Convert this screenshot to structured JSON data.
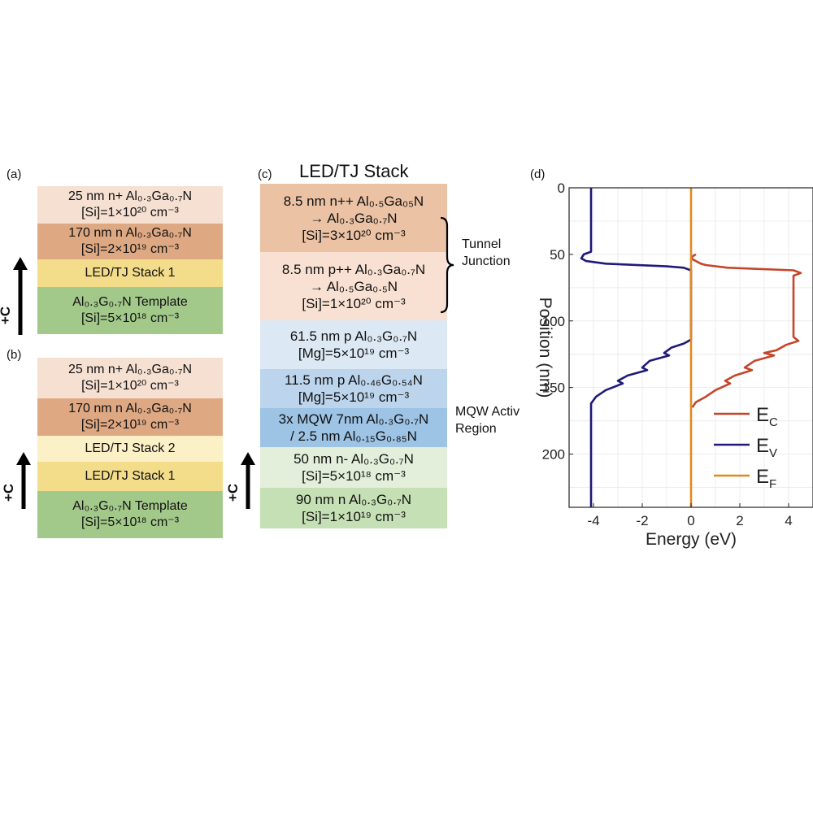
{
  "panel_a": {
    "label": "(a)",
    "layers": [
      {
        "line1": "25 nm n+ Al₀.₃Ga₀.₇N",
        "line2": "[Si]=1×10²⁰ cm⁻³",
        "color": "#f5e0d2"
      },
      {
        "line1": "170 nm n Al₀.₃Ga₀.₇N",
        "line2": "[Si]=2×10¹⁹ cm⁻³",
        "color": "#dea883"
      },
      {
        "line1": "LED/TJ Stack 1",
        "line2": "",
        "color": "#f3dc8a"
      },
      {
        "line1": "Al₀.₃G₀.₇N Template",
        "line2": "[Si]=5×10¹⁸ cm⁻³",
        "color": "#a3c98a"
      }
    ],
    "arrow_label": "+C"
  },
  "panel_b": {
    "label": "(b)",
    "layers": [
      {
        "line1": "25 nm n+ Al₀.₃Ga₀.₇N",
        "line2": "[Si]=1×10²⁰ cm⁻³",
        "color": "#f5e0d2"
      },
      {
        "line1": "170 nm n Al₀.₃Ga₀.₇N",
        "line2": "[Si]=2×10¹⁹ cm⁻³",
        "color": "#dea883"
      },
      {
        "line1": "LED/TJ Stack 2",
        "line2": "",
        "color": "#fbf0c6"
      },
      {
        "line1": "LED/TJ Stack 1",
        "line2": "",
        "color": "#f3dc8a"
      },
      {
        "line1": "Al₀.₃G₀.₇N Template",
        "line2": "[Si]=5×10¹⁸ cm⁻³",
        "color": "#a3c98a"
      }
    ],
    "arrow_label": "+C"
  },
  "panel_c": {
    "label": "(c)",
    "title": "LED/TJ Stack",
    "layers": [
      {
        "line1": "8.5 nm n++ Al₀.₅Ga₀₅N",
        "line2": "→ Al₀.₃Ga₀.₇N",
        "line3": "[Si]=3×10²⁰ cm⁻³",
        "color": "#ebc2a4"
      },
      {
        "line1": "8.5 nm p++ Al₀.₃Ga₀.₇N",
        "line2": "→ Al₀.₅Ga₀.₅N",
        "line3": "[Si]=1×10²⁰ cm⁻³",
        "color": "#f8e1d2"
      },
      {
        "line1": "61.5 nm p Al₀.₃G₀.₇N",
        "line2": "[Mg]=5×10¹⁹ cm⁻³",
        "line3": "",
        "color": "#dce9f4"
      },
      {
        "line1": "11.5 nm p Al₀.₄₆G₀.₅₄N",
        "line2": "[Mg]=5×10¹⁹ cm⁻³",
        "line3": "",
        "color": "#bcd5ec"
      },
      {
        "line1": "3x MQW 7nm Al₀.₃G₀.₇N",
        "line2": "/ 2.5 nm Al₀.₁₅G₀.₈₅N",
        "line3": "",
        "color": "#9dc3e5"
      },
      {
        "line1": "50 nm n- Al₀.₃G₀.₇N",
        "line2": "[Si]=5×10¹⁸ cm⁻³",
        "line3": "",
        "color": "#e3efdb"
      },
      {
        "line1": "90 nm n Al₀.₃G₀.₇N",
        "line2": "[Si]=1×10¹⁹ cm⁻³",
        "line3": "",
        "color": "#c6e0b5"
      }
    ],
    "tunnel_label_1": "Tunnel",
    "tunnel_label_2": "Junction",
    "mqw_label_1": "MQW Activ",
    "mqw_label_2": "Region",
    "arrow_label": "+C"
  },
  "panel_d": {
    "label": "(d)",
    "chart_data": {
      "type": "line",
      "xlabel": "Energy (eV)",
      "ylabel": "Position (nm)",
      "xlim": [
        -5,
        5
      ],
      "ylim": [
        0,
        240
      ],
      "y_reversed": true,
      "grid": true,
      "legend_position": "lower-right",
      "xticks": [
        -4,
        -2,
        0,
        2,
        4
      ],
      "yticks": [
        0,
        50,
        100,
        150,
        200
      ],
      "series": [
        {
          "name": "E",
          "sub": "C",
          "color": "#c4452a",
          "points": [
            [
              0.2,
              50
            ],
            [
              0.1,
              51
            ],
            [
              0.0,
              53
            ],
            [
              0.2,
              55
            ],
            [
              0.4,
              57
            ],
            [
              0.6,
              58
            ],
            [
              1.5,
              60
            ],
            [
              4.2,
              62
            ],
            [
              4.5,
              64
            ],
            [
              4.2,
              66
            ],
            [
              4.2,
              90
            ],
            [
              4.2,
              112
            ],
            [
              4.4,
              115
            ],
            [
              3.9,
              118
            ],
            [
              3.5,
              122
            ],
            [
              3.0,
              124
            ],
            [
              3.4,
              126
            ],
            [
              2.6,
              130
            ],
            [
              2.2,
              135
            ],
            [
              2.5,
              137
            ],
            [
              1.8,
              141
            ],
            [
              1.4,
              145
            ],
            [
              1.6,
              147
            ],
            [
              1.0,
              152
            ],
            [
              0.6,
              157
            ],
            [
              0.2,
              161
            ],
            [
              0.05,
              165
            ]
          ]
        },
        {
          "name": "E",
          "sub": "V",
          "color": "#1f1a7a",
          "points": [
            [
              -4.1,
              0
            ],
            [
              -4.1,
              20
            ],
            [
              -4.1,
              48
            ],
            [
              -4.4,
              50
            ],
            [
              -4.5,
              53
            ],
            [
              -4.3,
              55
            ],
            [
              -3.5,
              57
            ],
            [
              -1.0,
              59
            ],
            [
              -0.3,
              60
            ],
            [
              0.0,
              62
            ],
            [
              0.0,
              90
            ],
            [
              0.0,
              114
            ],
            [
              -0.3,
              117
            ],
            [
              -0.8,
              120
            ],
            [
              -1.1,
              124
            ],
            [
              -0.9,
              126
            ],
            [
              -1.7,
              130
            ],
            [
              -2.0,
              135
            ],
            [
              -1.8,
              137
            ],
            [
              -2.6,
              141
            ],
            [
              -3.0,
              145
            ],
            [
              -2.8,
              147
            ],
            [
              -3.5,
              152
            ],
            [
              -3.9,
              157
            ],
            [
              -4.1,
              162
            ],
            [
              -4.1,
              170
            ],
            [
              -4.1,
              200
            ],
            [
              -4.1,
              240
            ]
          ]
        },
        {
          "name": "E",
          "sub": "F",
          "color": "#e08a1e",
          "points": [
            [
              0.0,
              0
            ],
            [
              0.0,
              240
            ]
          ]
        }
      ]
    }
  }
}
